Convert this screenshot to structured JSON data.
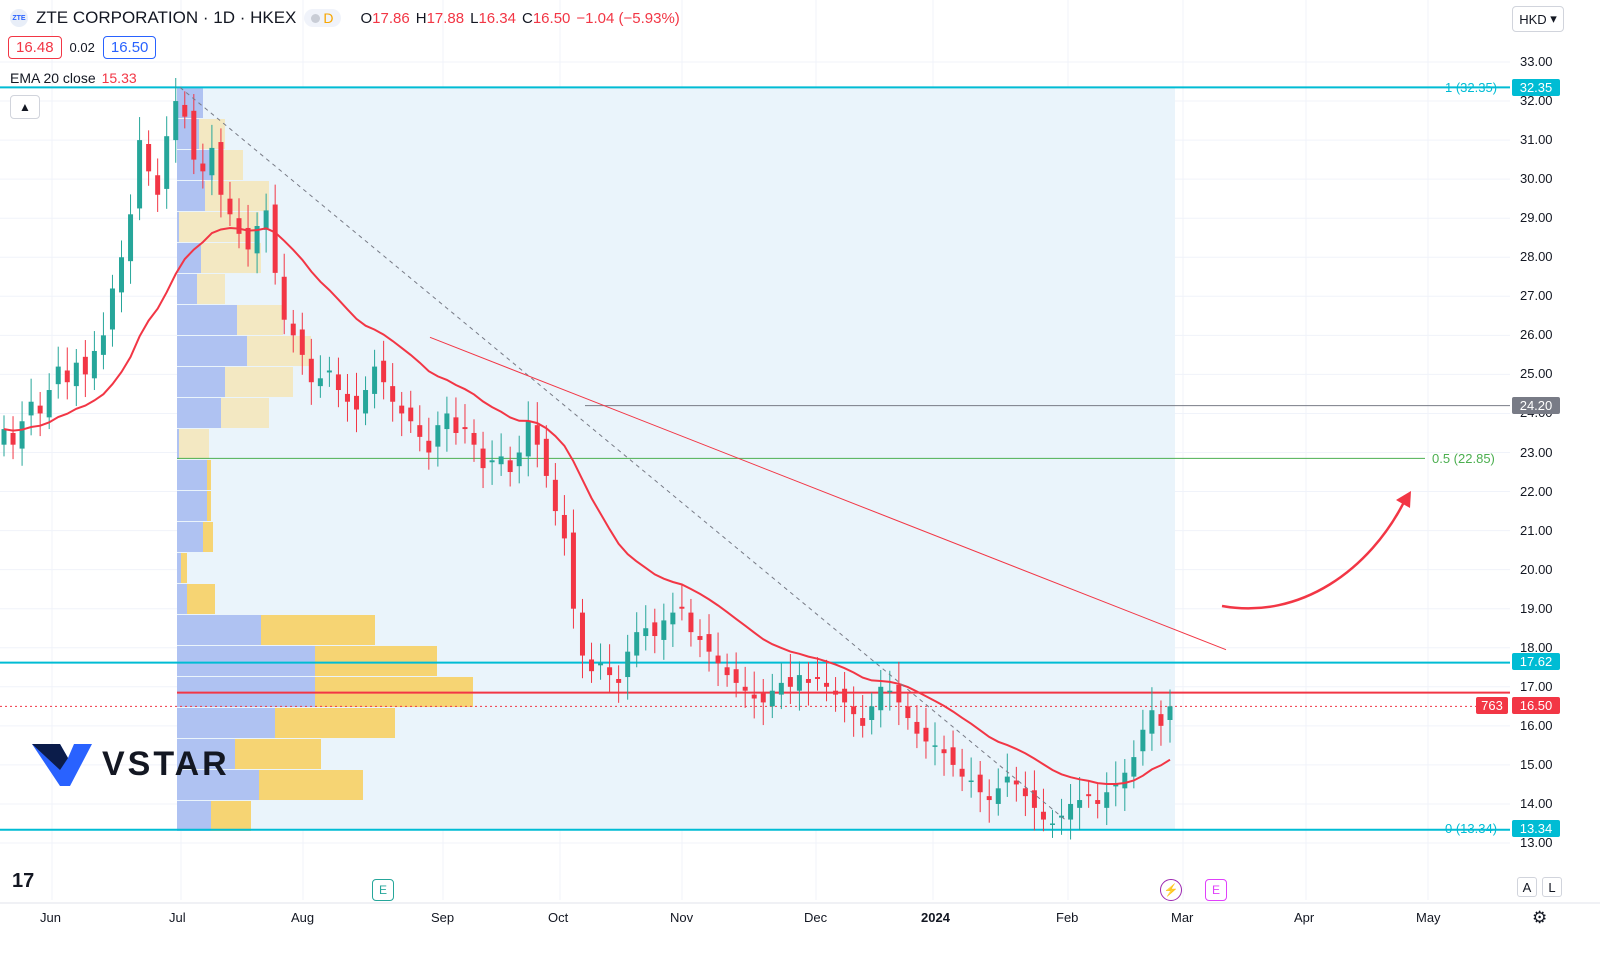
{
  "header": {
    "symbol_logo": "ZTE",
    "title": "ZTE CORPORATION · 1D · HKEX",
    "badge": "D",
    "open_label": "O",
    "open": "17.86",
    "high_label": "H",
    "high": "17.88",
    "low_label": "L",
    "low": "16.34",
    "close_label": "C",
    "close": "16.50",
    "change": "−1.04 (−5.93%)"
  },
  "trade": {
    "sell": "16.48",
    "spread": "0.02",
    "buy": "16.50"
  },
  "indicator": {
    "name": "EMA 20 close",
    "value": "15.33"
  },
  "currency": "HKD",
  "price_axis": [
    "33.00",
    "32.00",
    "31.00",
    "30.00",
    "29.00",
    "28.00",
    "27.00",
    "26.00",
    "25.00",
    "24.00",
    "23.00",
    "22.00",
    "21.00",
    "20.00",
    "19.00",
    "18.00",
    "17.00",
    "16.00",
    "15.00",
    "14.00",
    "13.00"
  ],
  "time_axis": [
    "Jun",
    "Jul",
    "Aug",
    "Sep",
    "Oct",
    "Nov",
    "Dec",
    "2024",
    "Feb",
    "Mar",
    "Apr",
    "May"
  ],
  "price_labels": {
    "fib_top": "32.35",
    "resistance_gray": "24.20",
    "resistance_blue": "17.62",
    "current": "16.50",
    "countdown": "763",
    "fib_bottom": "13.34"
  },
  "fib_labels": {
    "top": "1 (32.35)",
    "mid": "0.5 (22.85)",
    "bottom": "0 (13.34)"
  },
  "events": {
    "earnings_1": "E",
    "earnings_2": "E",
    "dividend": "⚡"
  },
  "scale_buttons": {
    "auto": "A",
    "log": "L"
  },
  "watermark": "VSTAR",
  "tv_logo": "17",
  "colors": {
    "up": "#26a69a",
    "down": "#f23645",
    "ema": "#f23645",
    "fib_line": "#00bcd4",
    "mid_fib": "#4caf50",
    "gray_line": "#787b86",
    "vp_up": "#a5b8f0",
    "vp_down": "#f7d26b",
    "highlight_bg": "#eaf4fb"
  },
  "chart_data": {
    "type": "candlestick",
    "symbol": "ZTE CORPORATION",
    "interval": "1D",
    "exchange": "HKEX",
    "ylim": [
      12.7,
      33.5
    ],
    "last": {
      "open": 17.86,
      "high": 17.88,
      "low": 16.34,
      "close": 16.5
    },
    "ema20": 15.33,
    "horizontal_levels": [
      32.35,
      24.2,
      22.85,
      17.62,
      16.85,
      16.5,
      13.34
    ],
    "closes": [
      23.6,
      23.2,
      23.8,
      24.3,
      24.0,
      24.6,
      25.2,
      24.8,
      25.3,
      25.0,
      25.6,
      26.0,
      27.2,
      28.0,
      29.1,
      31.0,
      30.2,
      29.6,
      31.1,
      32.0,
      31.6,
      30.5,
      30.2,
      30.8,
      29.6,
      29.1,
      28.6,
      28.2,
      28.8,
      29.2,
      27.6,
      26.4,
      26.0,
      25.5,
      24.8,
      24.9,
      25.1,
      24.6,
      24.3,
      24.1,
      24.6,
      25.2,
      24.8,
      24.3,
      24.0,
      23.8,
      23.4,
      23.0,
      23.7,
      24.0,
      23.5,
      23.6,
      23.2,
      22.6,
      22.8,
      22.9,
      22.5,
      23.0,
      23.8,
      23.2,
      22.4,
      21.5,
      20.8,
      19.0,
      17.8,
      17.4,
      17.6,
      17.3,
      17.1,
      17.9,
      18.4,
      18.5,
      18.3,
      18.7,
      18.9,
      19.0,
      18.4,
      18.2,
      17.9,
      17.6,
      17.3,
      17.1,
      16.9,
      16.7,
      16.6,
      16.9,
      17.1,
      17.0,
      17.3,
      17.1,
      17.2,
      17.0,
      16.8,
      16.6,
      16.3,
      16.0,
      16.5,
      17.0,
      16.9,
      16.6,
      16.2,
      15.8,
      15.6,
      15.5,
      15.3,
      15.0,
      14.7,
      14.6,
      14.3,
      14.1,
      14.4,
      14.7,
      14.5,
      14.2,
      13.9,
      13.6,
      13.5,
      13.7,
      14.0,
      14.1,
      14.2,
      14.0,
      14.3,
      14.5,
      14.8,
      15.2,
      15.9,
      16.4,
      16.0,
      16.5
    ]
  }
}
